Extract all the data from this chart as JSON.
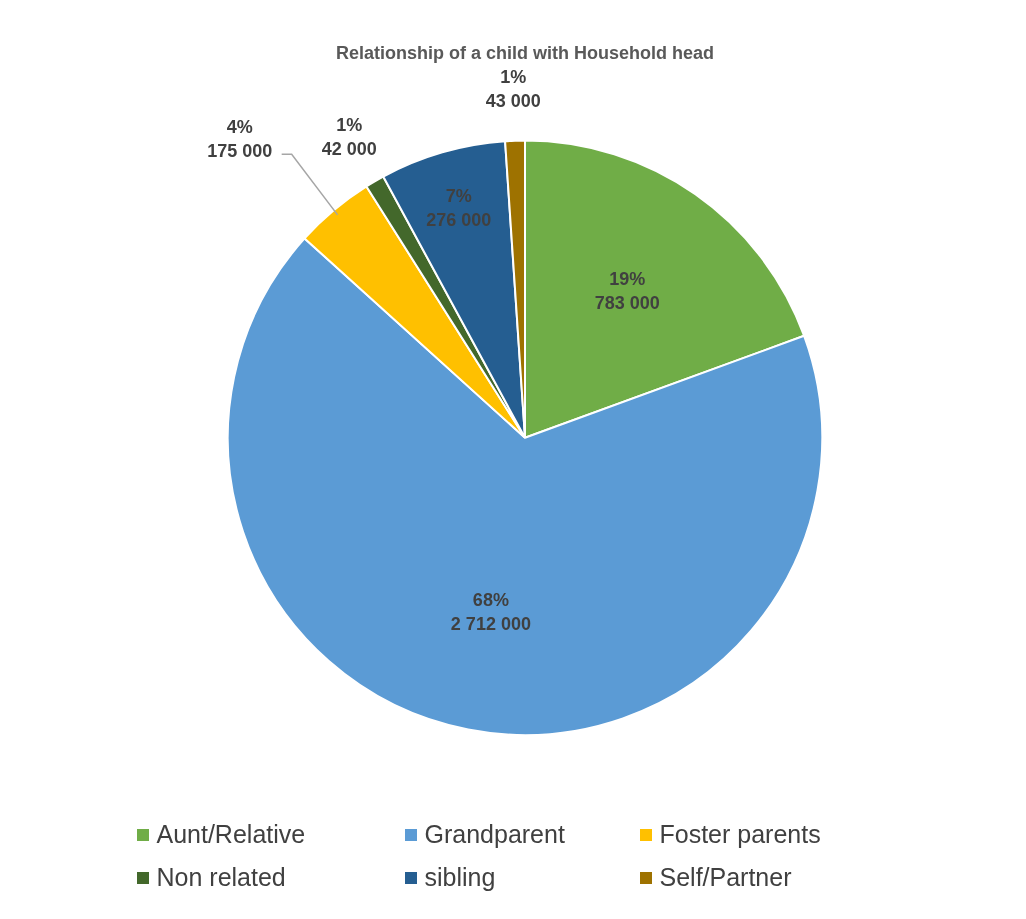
{
  "chart_data": {
    "type": "pie",
    "title": "Relationship of a child with Household head",
    "categories": [
      "Aunt/Relative",
      "Grandparent",
      "Foster parents",
      "Non related",
      "sibling",
      "Self/Partner"
    ],
    "values": [
      783000,
      2712000,
      175000,
      42000,
      276000,
      43000
    ],
    "colors": [
      "#70ad47",
      "#5b9bd5",
      "#ffc000",
      "#43682b",
      "#255e91",
      "#9e7200"
    ],
    "value_labels": [
      "19%\n783 000",
      "68%\n2 712 000",
      "4%\n175 000",
      "1%\n42 000",
      "7%\n276 000",
      "1%\n43 000"
    ],
    "legend": "bottom"
  }
}
